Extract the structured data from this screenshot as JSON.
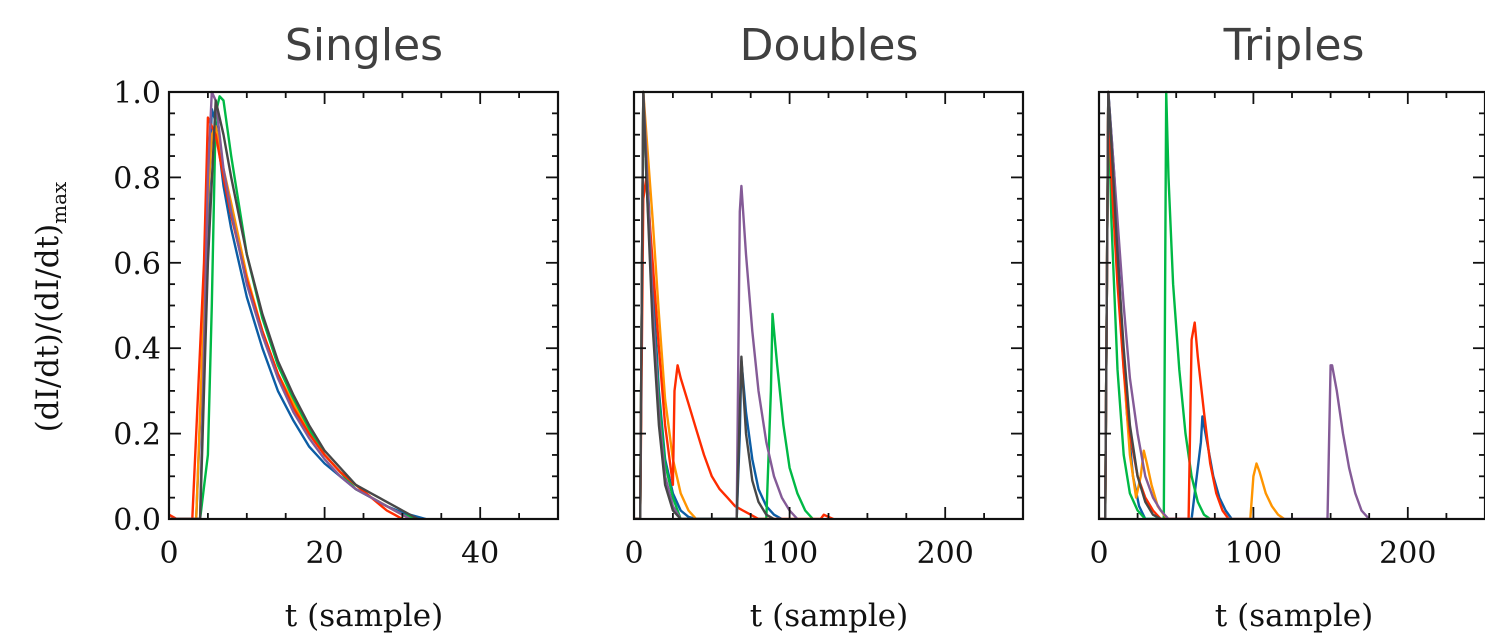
{
  "figure": {
    "ylabel": "(dI/dt)/(dI/dt)",
    "ylabel_sub": "max",
    "colors": [
      "#0C5DA5",
      "#00B945",
      "#FF9500",
      "#FF2C00",
      "#845B97",
      "#474747"
    ]
  },
  "chart_data": [
    {
      "type": "line",
      "title": "Singles",
      "xlabel": "t (sample)",
      "ylabel": "(dI/dt)/(dI/dt)max",
      "xlim": [
        0,
        50
      ],
      "ylim": [
        0,
        1
      ],
      "xticks": [
        0,
        20,
        40
      ],
      "xtick_labels": [
        "0",
        "20",
        "40"
      ],
      "yticks": [
        0,
        0.2,
        0.4,
        0.6,
        0.8,
        1.0
      ],
      "ytick_labels": [
        "0.0",
        "0.2",
        "0.4",
        "0.6",
        "0.8",
        "1.0"
      ],
      "series": [
        {
          "color": "#0C5DA5",
          "x": [
            0,
            3.5,
            5,
            5.5,
            6,
            7,
            8,
            10,
            12,
            14,
            16,
            18,
            20,
            22,
            24,
            26,
            28,
            30,
            32,
            33
          ],
          "y": [
            0,
            0,
            0.7,
            0.96,
            0.93,
            0.78,
            0.68,
            0.52,
            0.4,
            0.3,
            0.23,
            0.17,
            0.13,
            0.1,
            0.07,
            0.05,
            0.03,
            0.015,
            0.005,
            0
          ]
        },
        {
          "color": "#00B945",
          "x": [
            0,
            4,
            5,
            5.5,
            6,
            6.5,
            7,
            8,
            10,
            12,
            14,
            16,
            18,
            20,
            22,
            24,
            26,
            28,
            30,
            32
          ],
          "y": [
            0,
            0,
            0.15,
            0.5,
            0.95,
            0.99,
            0.98,
            0.85,
            0.62,
            0.47,
            0.36,
            0.28,
            0.21,
            0.15,
            0.11,
            0.07,
            0.05,
            0.03,
            0.01,
            0
          ]
        },
        {
          "color": "#FF9500",
          "x": [
            0,
            3.5,
            5,
            5.5,
            6,
            7,
            8,
            10,
            12,
            14,
            16,
            18,
            20,
            22,
            24,
            26,
            28,
            30,
            31
          ],
          "y": [
            0,
            0,
            0.75,
            0.9,
            0.92,
            0.82,
            0.74,
            0.57,
            0.44,
            0.34,
            0.27,
            0.2,
            0.15,
            0.11,
            0.08,
            0.05,
            0.03,
            0.01,
            0
          ]
        },
        {
          "color": "#FF2C00",
          "x": [
            0,
            1,
            3,
            4.5,
            5,
            6,
            7,
            8,
            10,
            12,
            14,
            16,
            18,
            20,
            22,
            24,
            26,
            28,
            29,
            30
          ],
          "y": [
            0.01,
            0,
            0,
            0.6,
            0.94,
            0.9,
            0.8,
            0.71,
            0.56,
            0.44,
            0.34,
            0.26,
            0.2,
            0.15,
            0.11,
            0.08,
            0.05,
            0.02,
            0.01,
            0
          ]
        },
        {
          "color": "#845B97",
          "x": [
            0,
            4,
            5,
            5.5,
            6,
            7,
            8,
            10,
            12,
            14,
            16,
            18,
            20,
            22,
            24,
            26,
            28,
            30,
            31
          ],
          "y": [
            0,
            0,
            0.8,
            1.0,
            0.98,
            0.82,
            0.72,
            0.55,
            0.43,
            0.33,
            0.25,
            0.19,
            0.14,
            0.1,
            0.07,
            0.05,
            0.03,
            0.01,
            0
          ]
        },
        {
          "color": "#474747",
          "x": [
            0,
            4,
            5,
            6,
            7,
            8,
            10,
            12,
            14,
            16,
            18,
            20,
            22,
            24,
            26,
            28,
            30,
            32
          ],
          "y": [
            0,
            0,
            0.6,
            0.98,
            0.9,
            0.8,
            0.62,
            0.48,
            0.37,
            0.29,
            0.22,
            0.16,
            0.12,
            0.08,
            0.06,
            0.04,
            0.02,
            0
          ]
        }
      ]
    },
    {
      "type": "line",
      "title": "Doubles",
      "xlabel": "t (sample)",
      "xlim": [
        0,
        250
      ],
      "ylim": [
        0,
        1
      ],
      "xticks": [
        0,
        100,
        200
      ],
      "xtick_labels": [
        "0",
        "100",
        "200"
      ],
      "yticks": [
        0,
        0.2,
        0.4,
        0.6,
        0.8,
        1.0
      ],
      "ytick_labels": [
        "",
        "",
        "",
        "",
        "",
        ""
      ],
      "series": [
        {
          "color": "#0C5DA5",
          "x": [
            0,
            4,
            6,
            8,
            12,
            16,
            20,
            25,
            30,
            35,
            40,
            66,
            68,
            69,
            72,
            76,
            80,
            85,
            90,
            95
          ],
          "y": [
            0,
            0,
            1,
            0.85,
            0.55,
            0.3,
            0.14,
            0.06,
            0.02,
            0.005,
            0,
            0,
            0.2,
            0.37,
            0.25,
            0.14,
            0.07,
            0.03,
            0.01,
            0
          ]
        },
        {
          "color": "#00B945",
          "x": [
            0,
            4,
            6,
            8,
            12,
            16,
            20,
            25,
            30,
            85,
            88,
            89,
            92,
            96,
            100,
            105,
            110,
            115
          ],
          "y": [
            0,
            0,
            1,
            0.8,
            0.5,
            0.28,
            0.13,
            0.05,
            0,
            0,
            0.3,
            0.48,
            0.36,
            0.22,
            0.12,
            0.06,
            0.02,
            0
          ]
        },
        {
          "color": "#FF9500",
          "x": [
            0,
            4,
            6,
            8,
            12,
            16,
            20,
            25,
            30,
            35,
            40
          ],
          "y": [
            0,
            0,
            1,
            0.9,
            0.7,
            0.48,
            0.28,
            0.14,
            0.06,
            0.02,
            0
          ]
        },
        {
          "color": "#FF2C00",
          "x": [
            0,
            4,
            6,
            8,
            12,
            16,
            20,
            25,
            26,
            28,
            30,
            35,
            40,
            45,
            50,
            55,
            60,
            65,
            70,
            75,
            80,
            100,
            120,
            122,
            125,
            128
          ],
          "y": [
            0,
            0,
            0.75,
            0.8,
            0.6,
            0.4,
            0.22,
            0.08,
            0.3,
            0.36,
            0.33,
            0.27,
            0.21,
            0.15,
            0.1,
            0.07,
            0.05,
            0.03,
            0.02,
            0.01,
            0,
            0,
            0,
            0.01,
            0.005,
            0
          ]
        },
        {
          "color": "#845B97",
          "x": [
            0,
            4,
            6,
            8,
            12,
            16,
            20,
            25,
            30,
            66,
            68,
            69,
            72,
            76,
            80,
            85,
            90,
            95,
            100,
            105
          ],
          "y": [
            0,
            0,
            1,
            0.85,
            0.5,
            0.25,
            0.1,
            0.03,
            0,
            0,
            0.72,
            0.78,
            0.62,
            0.44,
            0.3,
            0.18,
            0.1,
            0.05,
            0.02,
            0
          ]
        },
        {
          "color": "#474747",
          "x": [
            0,
            4,
            6,
            8,
            12,
            16,
            20,
            25,
            30,
            66,
            68,
            69,
            72,
            76,
            80,
            85,
            90
          ],
          "y": [
            0,
            0,
            1,
            0.8,
            0.45,
            0.22,
            0.08,
            0.02,
            0,
            0,
            0.25,
            0.38,
            0.2,
            0.09,
            0.04,
            0.01,
            0
          ]
        }
      ]
    },
    {
      "type": "line",
      "title": "Triples",
      "xlabel": "t (sample)",
      "xlim": [
        0,
        250
      ],
      "ylim": [
        0,
        1
      ],
      "xticks": [
        0,
        100,
        200
      ],
      "xtick_labels": [
        "0",
        "100",
        "200"
      ],
      "yticks": [
        0,
        0.2,
        0.4,
        0.6,
        0.8,
        1.0
      ],
      "ytick_labels": [
        "",
        "",
        "",
        "",
        "",
        ""
      ],
      "series": [
        {
          "color": "#0C5DA5",
          "x": [
            0,
            4,
            6,
            8,
            10,
            14,
            18,
            22,
            26,
            30,
            60,
            66,
            67,
            70,
            74,
            78,
            82,
            86
          ],
          "y": [
            0,
            0,
            1,
            0.9,
            0.8,
            0.5,
            0.25,
            0.1,
            0.03,
            0,
            0,
            0.18,
            0.24,
            0.18,
            0.1,
            0.05,
            0.02,
            0
          ]
        },
        {
          "color": "#00B945",
          "x": [
            0,
            4,
            6,
            8,
            12,
            16,
            20,
            25,
            30,
            42,
            43.5,
            45,
            48,
            52,
            56,
            60,
            64,
            68,
            72
          ],
          "y": [
            0,
            0,
            1,
            0.7,
            0.35,
            0.15,
            0.06,
            0.02,
            0,
            0,
            1.0,
            0.8,
            0.55,
            0.35,
            0.2,
            0.1,
            0.04,
            0.01,
            0
          ]
        },
        {
          "color": "#FF9500",
          "x": [
            0,
            4,
            6,
            8,
            12,
            16,
            20,
            24,
            27,
            29,
            31,
            34,
            38,
            42,
            45,
            98,
            100,
            102,
            104,
            108,
            112,
            116,
            120
          ],
          "y": [
            0,
            0,
            1,
            0.85,
            0.6,
            0.35,
            0.15,
            0.05,
            0.1,
            0.16,
            0.13,
            0.08,
            0.03,
            0.01,
            0,
            0,
            0.1,
            0.13,
            0.11,
            0.06,
            0.03,
            0.01,
            0
          ]
        },
        {
          "color": "#FF2C00",
          "x": [
            0,
            4,
            6,
            8,
            12,
            16,
            20,
            25,
            30,
            35,
            40,
            58,
            60,
            62,
            64,
            68,
            72,
            76,
            80,
            84
          ],
          "y": [
            0,
            0,
            1,
            0.8,
            0.55,
            0.35,
            0.2,
            0.1,
            0.05,
            0.02,
            0,
            0,
            0.42,
            0.46,
            0.38,
            0.25,
            0.13,
            0.06,
            0.02,
            0
          ]
        },
        {
          "color": "#845B97",
          "x": [
            0,
            4,
            6,
            8,
            12,
            16,
            20,
            25,
            30,
            35,
            40,
            45,
            148,
            150,
            151,
            154,
            158,
            162,
            166,
            170,
            175
          ],
          "y": [
            0,
            0,
            1,
            0.9,
            0.7,
            0.5,
            0.33,
            0.2,
            0.1,
            0.05,
            0.02,
            0,
            0,
            0.36,
            0.36,
            0.3,
            0.2,
            0.12,
            0.06,
            0.02,
            0
          ]
        },
        {
          "color": "#474747",
          "x": [
            0,
            4,
            6,
            8,
            12,
            16,
            20,
            25,
            30,
            35,
            40
          ],
          "y": [
            0,
            0,
            1,
            0.88,
            0.62,
            0.4,
            0.22,
            0.1,
            0.04,
            0.01,
            0
          ]
        }
      ]
    }
  ]
}
